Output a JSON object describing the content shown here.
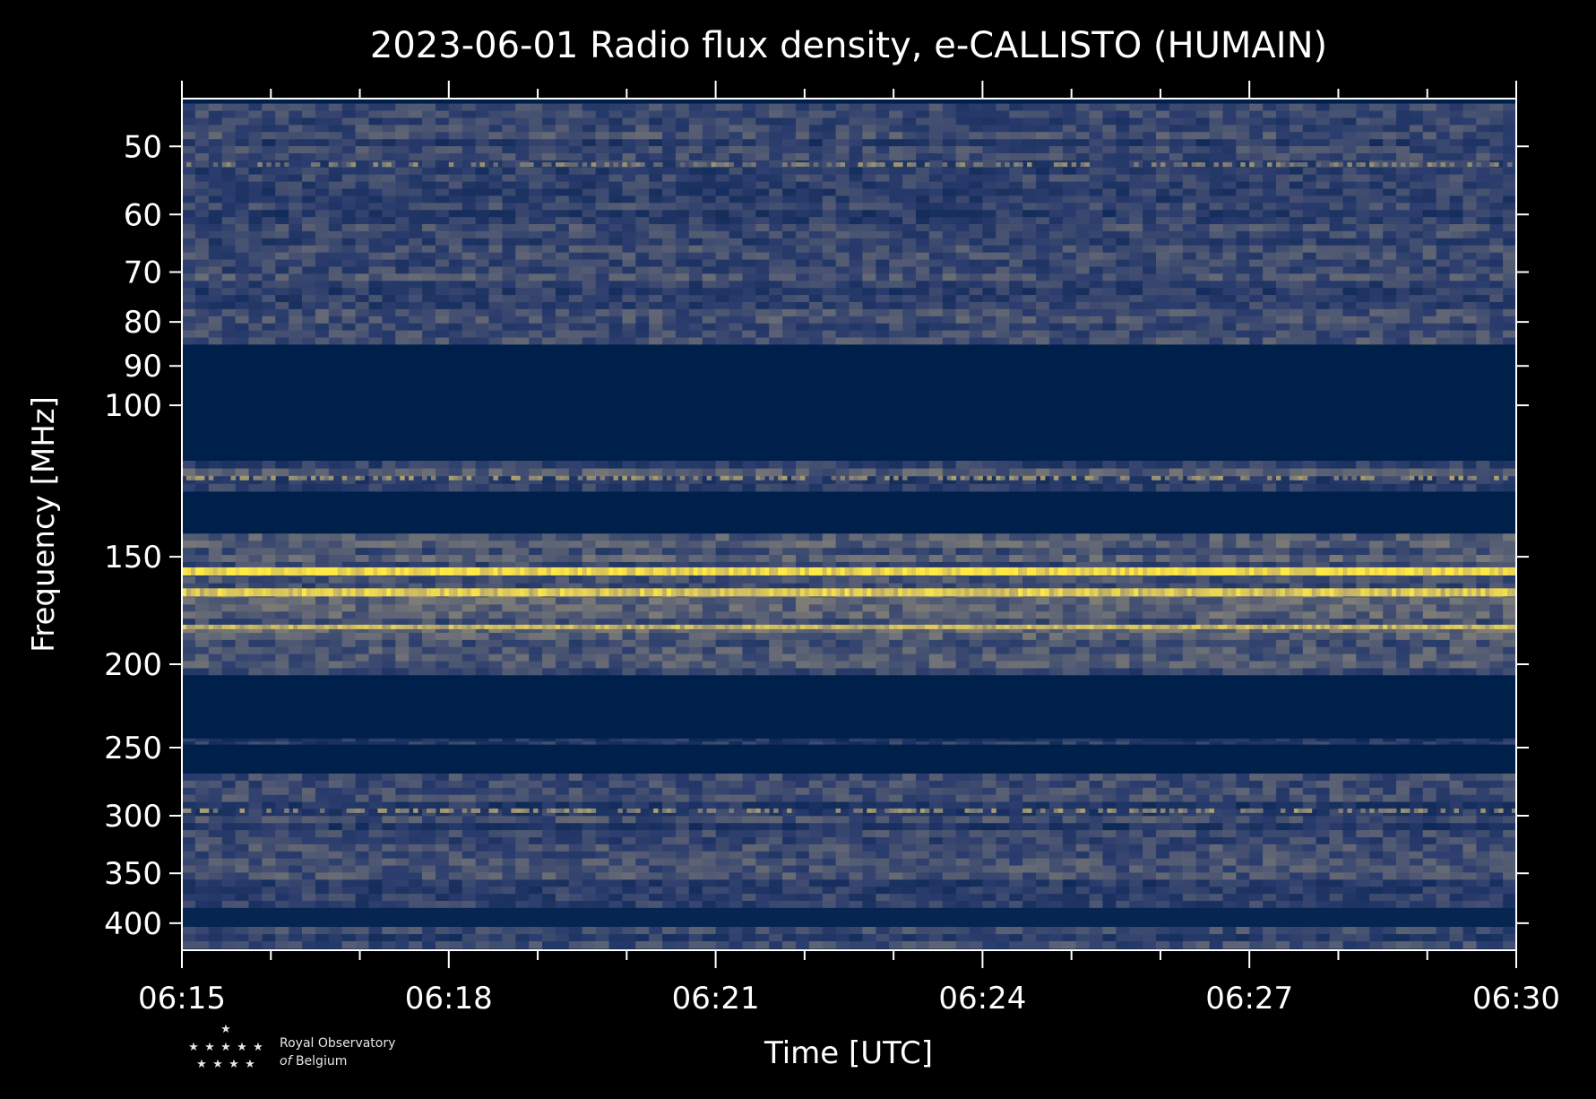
{
  "chart_data": {
    "type": "heatmap",
    "title": "2023-06-01 Radio flux density, e-CALLISTO (HUMAIN)",
    "xlabel": "Time [UTC]",
    "ylabel": "Frequency [MHz]",
    "x_range": [
      "06:15",
      "06:30"
    ],
    "x_ticks": [
      "06:15",
      "06:18",
      "06:21",
      "06:24",
      "06:27",
      "06:30"
    ],
    "y_scale": "log",
    "y_range": [
      44,
      430
    ],
    "y_ticks": [
      50,
      60,
      70,
      80,
      90,
      100,
      150,
      200,
      250,
      300,
      350,
      400
    ],
    "colormap": [
      "#00204c",
      "#2c3e6e",
      "#7c7b78",
      "#c9b765",
      "#ffe945"
    ],
    "bands": [
      {
        "f_low": 44.6,
        "f_high": 85,
        "intensity": 0.3
      },
      {
        "f_low": 85,
        "f_high": 116,
        "intensity": 0.0
      },
      {
        "f_low": 116,
        "f_high": 126,
        "intensity": 0.35
      },
      {
        "f_low": 126,
        "f_high": 141,
        "intensity": 0.0
      },
      {
        "f_low": 141,
        "f_high": 206,
        "intensity": 0.4
      },
      {
        "f_low": 206,
        "f_high": 244,
        "intensity": 0.0
      },
      {
        "f_low": 244,
        "f_high": 248,
        "intensity": 0.2
      },
      {
        "f_low": 248,
        "f_high": 268,
        "intensity": 0.0
      },
      {
        "f_low": 268,
        "f_high": 384,
        "intensity": 0.3
      },
      {
        "f_low": 384,
        "f_high": 404,
        "intensity": 0.05
      },
      {
        "f_low": 404,
        "f_high": 428,
        "intensity": 0.28
      }
    ],
    "strong_lines": [
      {
        "freq": 52.5,
        "intensity": 0.55
      },
      {
        "freq": 121.5,
        "intensity": 0.6
      },
      {
        "freq": 156,
        "intensity": 1.0
      },
      {
        "freq": 165,
        "intensity": 0.9
      },
      {
        "freq": 181,
        "intensity": 0.8
      },
      {
        "freq": 296,
        "intensity": 0.6
      }
    ]
  },
  "logo": {
    "line1": "Royal Observatory",
    "line2_prefix": "of",
    "line2_rest": " Belgium"
  }
}
